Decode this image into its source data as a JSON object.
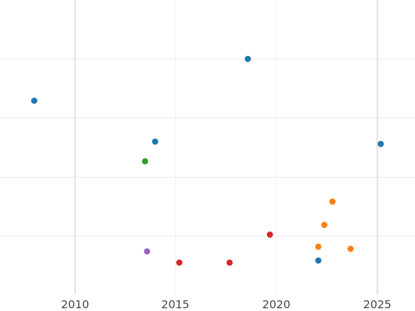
{
  "chart_data": {
    "type": "scatter",
    "title": "",
    "xlabel": "",
    "ylabel": "",
    "xlim": [
      2006.3,
      2026.9
    ],
    "ylim": [
      0,
      1
    ],
    "grid": true,
    "legend": "none",
    "x_ticks": [
      {
        "value": 2010,
        "label": "2010",
        "major": true
      },
      {
        "value": 2015,
        "label": "2015",
        "major": false
      },
      {
        "value": 2020,
        "label": "2020",
        "major": false
      },
      {
        "value": 2025,
        "label": "2025",
        "major": true
      }
    ],
    "y_gridlines": [
      0.2,
      0.4,
      0.6,
      0.8
    ],
    "series": [
      {
        "color": "#1f77b4",
        "points": [
          {
            "x": 2008.0,
            "y": 0.658
          },
          {
            "x": 2014.0,
            "y": 0.519
          },
          {
            "x": 2018.6,
            "y": 0.8
          },
          {
            "x": 2022.1,
            "y": 0.115
          },
          {
            "x": 2025.2,
            "y": 0.511
          }
        ]
      },
      {
        "color": "#ff7f0e",
        "points": [
          {
            "x": 2022.8,
            "y": 0.315
          },
          {
            "x": 2022.4,
            "y": 0.236
          },
          {
            "x": 2022.1,
            "y": 0.162
          },
          {
            "x": 2023.7,
            "y": 0.155
          }
        ]
      },
      {
        "color": "#2ca02c",
        "points": [
          {
            "x": 2013.5,
            "y": 0.452
          }
        ]
      },
      {
        "color": "#d62728",
        "points": [
          {
            "x": 2019.7,
            "y": 0.203
          },
          {
            "x": 2015.2,
            "y": 0.108
          },
          {
            "x": 2017.7,
            "y": 0.108
          }
        ]
      },
      {
        "color": "#9467bd",
        "points": [
          {
            "x": 2013.6,
            "y": 0.146
          }
        ]
      }
    ]
  }
}
